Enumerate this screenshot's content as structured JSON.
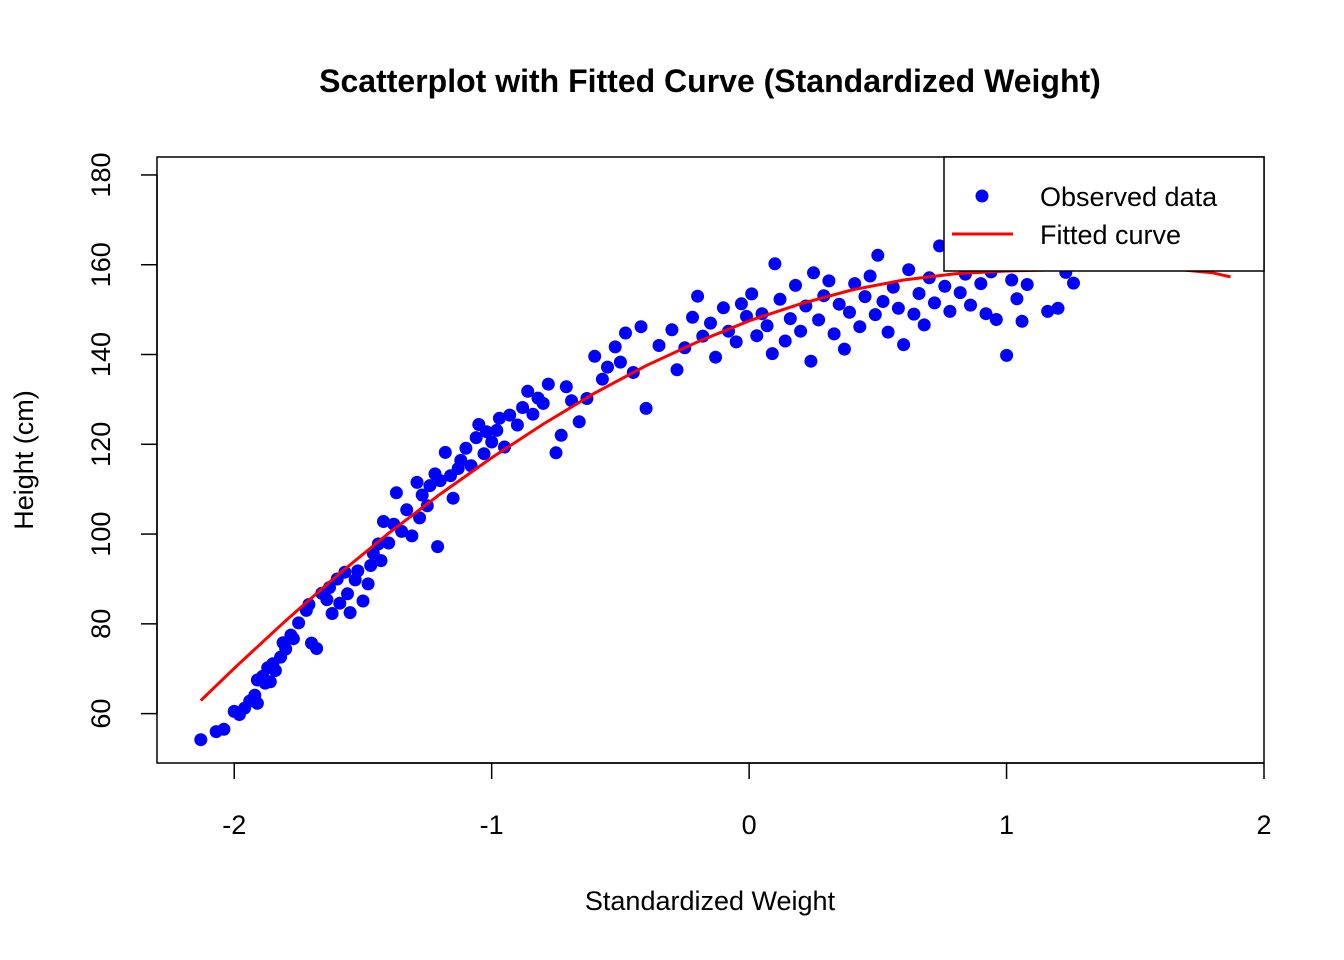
{
  "chart_data": {
    "type": "scatter",
    "title": "Scatterplot with Fitted Curve (Standardized Weight)",
    "xlabel": "Standardized Weight",
    "ylabel": "Height (cm)",
    "xlim": [
      -2.3,
      2.0
    ],
    "ylim": [
      49,
      184
    ],
    "x_ticks": [
      -2,
      -1,
      0,
      1,
      2
    ],
    "x_tick_labels": [
      "-2",
      "-1",
      "0",
      "1",
      "2"
    ],
    "y_ticks": [
      60,
      80,
      100,
      120,
      140,
      160,
      180
    ],
    "y_tick_labels": [
      "60",
      "80",
      "100",
      "120",
      "140",
      "160",
      "180"
    ],
    "grid": false,
    "legend_position": "top-right",
    "legend": {
      "observed_label": "Observed data",
      "fitted_label": "Fitted curve"
    },
    "colors": {
      "points": "#0000ff",
      "curve": "#ff0000",
      "axis": "#000000"
    },
    "series": [
      {
        "name": "Observed data",
        "kind": "points",
        "points": [
          [
            -2.13,
            54.2
          ],
          [
            -2.07,
            56.0
          ],
          [
            -2.04,
            56.5
          ],
          [
            -2.0,
            60.5
          ],
          [
            -1.98,
            59.8
          ],
          [
            -1.96,
            61.2
          ],
          [
            -1.94,
            62.8
          ],
          [
            -1.92,
            64.1
          ],
          [
            -1.91,
            62.3
          ],
          [
            -1.91,
            67.5
          ],
          [
            -1.89,
            68.3
          ],
          [
            -1.88,
            66.8
          ],
          [
            -1.87,
            70.2
          ],
          [
            -1.86,
            67.1
          ],
          [
            -1.85,
            71.1
          ],
          [
            -1.84,
            69.6
          ],
          [
            -1.82,
            72.6
          ],
          [
            -1.81,
            75.8
          ],
          [
            -1.8,
            74.4
          ],
          [
            -1.78,
            77.5
          ],
          [
            -1.77,
            76.7
          ],
          [
            -1.75,
            80.2
          ],
          [
            -1.72,
            83.0
          ],
          [
            -1.71,
            84.3
          ],
          [
            -1.7,
            75.7
          ],
          [
            -1.68,
            74.5
          ],
          [
            -1.66,
            86.8
          ],
          [
            -1.64,
            85.4
          ],
          [
            -1.63,
            88.1
          ],
          [
            -1.62,
            82.3
          ],
          [
            -1.6,
            90.0
          ],
          [
            -1.59,
            84.6
          ],
          [
            -1.57,
            91.5
          ],
          [
            -1.56,
            86.7
          ],
          [
            -1.55,
            82.5
          ],
          [
            -1.53,
            89.8
          ],
          [
            -1.52,
            91.8
          ],
          [
            -1.5,
            85.1
          ],
          [
            -1.48,
            88.9
          ],
          [
            -1.47,
            93.0
          ],
          [
            -1.46,
            95.7
          ],
          [
            -1.44,
            97.8
          ],
          [
            -1.43,
            94.1
          ],
          [
            -1.42,
            102.8
          ],
          [
            -1.4,
            98.0
          ],
          [
            -1.38,
            102.2
          ],
          [
            -1.37,
            109.2
          ],
          [
            -1.35,
            100.6
          ],
          [
            -1.33,
            105.4
          ],
          [
            -1.31,
            99.6
          ],
          [
            -1.29,
            111.5
          ],
          [
            -1.28,
            103.6
          ],
          [
            -1.27,
            108.7
          ],
          [
            -1.25,
            106.3
          ],
          [
            -1.24,
            110.8
          ],
          [
            -1.22,
            113.4
          ],
          [
            -1.21,
            97.2
          ],
          [
            -1.2,
            111.9
          ],
          [
            -1.18,
            118.2
          ],
          [
            -1.16,
            113.0
          ],
          [
            -1.15,
            108.0
          ],
          [
            -1.13,
            114.6
          ],
          [
            -1.12,
            116.4
          ],
          [
            -1.1,
            119.1
          ],
          [
            -1.08,
            115.2
          ],
          [
            -1.06,
            121.5
          ],
          [
            -1.05,
            124.4
          ],
          [
            -1.03,
            117.9
          ],
          [
            -1.02,
            122.8
          ],
          [
            -1.0,
            120.5
          ],
          [
            -0.98,
            123.1
          ],
          [
            -0.97,
            125.8
          ],
          [
            -0.95,
            119.4
          ],
          [
            -0.93,
            126.5
          ],
          [
            -0.9,
            124.3
          ],
          [
            -0.88,
            128.2
          ],
          [
            -0.86,
            131.8
          ],
          [
            -0.84,
            126.7
          ],
          [
            -0.82,
            130.3
          ],
          [
            -0.8,
            129.1
          ],
          [
            -0.78,
            133.4
          ],
          [
            -0.75,
            118.1
          ],
          [
            -0.73,
            122.0
          ],
          [
            -0.71,
            132.8
          ],
          [
            -0.69,
            129.7
          ],
          [
            -0.66,
            125.0
          ],
          [
            -0.63,
            130.2
          ],
          [
            -0.6,
            139.6
          ],
          [
            -0.57,
            134.5
          ],
          [
            -0.55,
            137.2
          ],
          [
            -0.52,
            141.7
          ],
          [
            -0.5,
            138.3
          ],
          [
            -0.48,
            144.8
          ],
          [
            -0.45,
            136.0
          ],
          [
            -0.42,
            146.2
          ],
          [
            -0.4,
            128.0
          ],
          [
            -0.35,
            142.0
          ],
          [
            -0.3,
            145.5
          ],
          [
            -0.28,
            136.6
          ],
          [
            -0.25,
            141.5
          ],
          [
            -0.22,
            148.3
          ],
          [
            -0.2,
            153.0
          ],
          [
            -0.18,
            144.1
          ],
          [
            -0.15,
            147.0
          ],
          [
            -0.13,
            139.4
          ],
          [
            -0.1,
            150.4
          ],
          [
            -0.08,
            145.2
          ],
          [
            -0.05,
            142.8
          ],
          [
            -0.03,
            151.3
          ],
          [
            -0.01,
            148.5
          ],
          [
            0.01,
            153.5
          ],
          [
            0.03,
            144.2
          ],
          [
            0.05,
            149.1
          ],
          [
            0.07,
            146.4
          ],
          [
            0.09,
            140.2
          ],
          [
            0.1,
            160.2
          ],
          [
            0.12,
            152.3
          ],
          [
            0.14,
            143.0
          ],
          [
            0.16,
            148.0
          ],
          [
            0.18,
            155.4
          ],
          [
            0.2,
            145.2
          ],
          [
            0.22,
            150.8
          ],
          [
            0.24,
            138.5
          ],
          [
            0.25,
            158.2
          ],
          [
            0.27,
            147.7
          ],
          [
            0.29,
            153.1
          ],
          [
            0.31,
            156.4
          ],
          [
            0.33,
            144.6
          ],
          [
            0.35,
            151.2
          ],
          [
            0.37,
            141.2
          ],
          [
            0.39,
            149.4
          ],
          [
            0.41,
            155.8
          ],
          [
            0.43,
            146.2
          ],
          [
            0.45,
            152.9
          ],
          [
            0.47,
            157.5
          ],
          [
            0.49,
            148.9
          ],
          [
            0.5,
            162.1
          ],
          [
            0.52,
            151.8
          ],
          [
            0.54,
            145.0
          ],
          [
            0.56,
            155.0
          ],
          [
            0.58,
            150.3
          ],
          [
            0.6,
            142.2
          ],
          [
            0.62,
            158.9
          ],
          [
            0.64,
            149.0
          ],
          [
            0.66,
            153.6
          ],
          [
            0.68,
            146.6
          ],
          [
            0.7,
            157.1
          ],
          [
            0.72,
            151.5
          ],
          [
            0.74,
            164.2
          ],
          [
            0.76,
            155.2
          ],
          [
            0.78,
            149.6
          ],
          [
            0.8,
            160.5
          ],
          [
            0.82,
            153.8
          ],
          [
            0.84,
            157.9
          ],
          [
            0.86,
            151.0
          ],
          [
            0.88,
            162.7
          ],
          [
            0.9,
            155.8
          ],
          [
            0.92,
            149.1
          ],
          [
            0.94,
            158.4
          ],
          [
            0.96,
            147.8
          ],
          [
            0.98,
            160.9
          ],
          [
            1.0,
            139.8
          ],
          [
            1.02,
            156.6
          ],
          [
            1.04,
            152.4
          ],
          [
            1.06,
            147.4
          ],
          [
            1.08,
            155.6
          ],
          [
            1.12,
            162.0
          ],
          [
            1.16,
            149.6
          ],
          [
            1.2,
            150.3
          ],
          [
            1.23,
            158.3
          ],
          [
            1.26,
            155.9
          ]
        ]
      },
      {
        "name": "Fitted curve",
        "kind": "line",
        "points": [
          [
            -2.13,
            62.9
          ],
          [
            -2.0,
            70.1
          ],
          [
            -1.8,
            80.7
          ],
          [
            -1.6,
            90.8
          ],
          [
            -1.4,
            100.2
          ],
          [
            -1.2,
            108.9
          ],
          [
            -1.0,
            117.0
          ],
          [
            -0.8,
            124.5
          ],
          [
            -0.6,
            131.4
          ],
          [
            -0.4,
            137.5
          ],
          [
            -0.2,
            142.8
          ],
          [
            0.0,
            147.5
          ],
          [
            0.2,
            151.3
          ],
          [
            0.4,
            154.4
          ],
          [
            0.6,
            156.6
          ],
          [
            0.8,
            158.0
          ],
          [
            1.0,
            158.6
          ],
          [
            1.2,
            158.9
          ],
          [
            1.4,
            159.3
          ],
          [
            1.6,
            159.3
          ],
          [
            1.8,
            158.2
          ],
          [
            1.87,
            157.3
          ]
        ]
      }
    ]
  }
}
